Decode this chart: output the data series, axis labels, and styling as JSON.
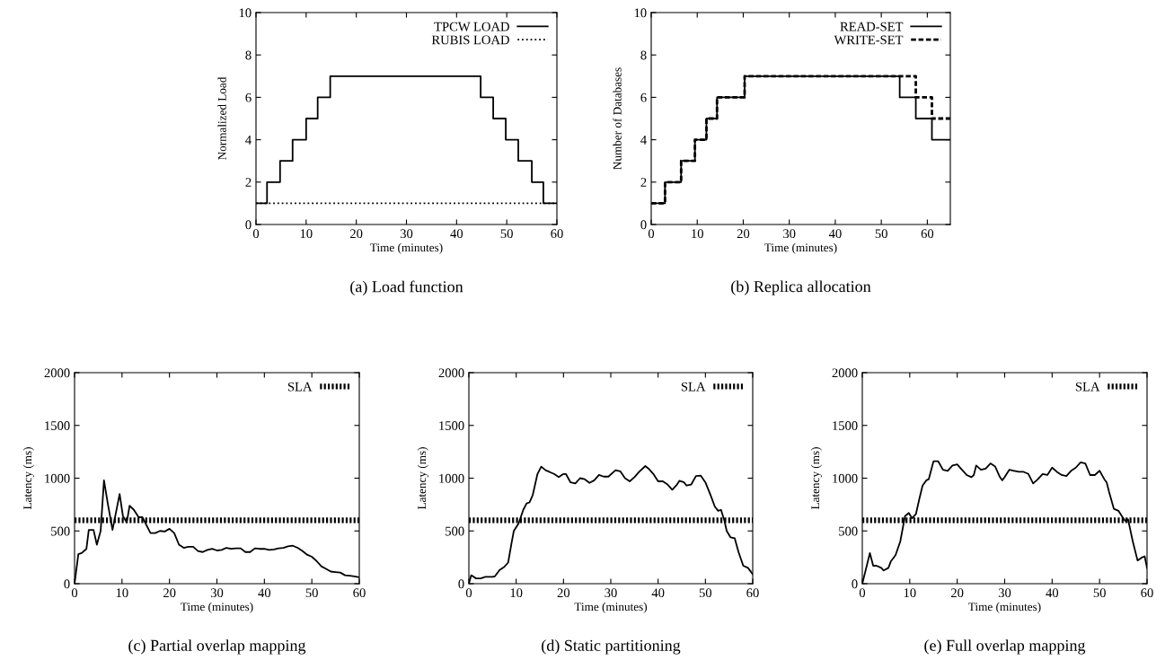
{
  "chart_data": [
    {
      "type": "step",
      "title": "(a) Load function",
      "xlabel": "Time (minutes)",
      "ylabel": "Normalized Load",
      "xlim": [
        0,
        60
      ],
      "xticks": [
        0,
        10,
        20,
        30,
        40,
        50,
        60
      ],
      "ylim": [
        0,
        10
      ],
      "yticks": [
        0,
        2,
        4,
        6,
        8,
        10
      ],
      "legend": "top right",
      "grid": false,
      "series": [
        {
          "name": "TPCW LOAD",
          "color": "#000000",
          "line_style": "solid",
          "x": [
            0,
            2.2,
            4.8,
            7.3,
            10,
            12.3,
            14.8,
            44.8,
            47.3,
            49.8,
            52.3,
            55,
            57.3,
            60
          ],
          "values": [
            1,
            2,
            3,
            4,
            5,
            6,
            7,
            6,
            5,
            4,
            3,
            2,
            1,
            1
          ]
        },
        {
          "name": "RUBIS LOAD",
          "color": "#000000",
          "line_style": "dotted",
          "x": [
            0,
            60
          ],
          "values": [
            1,
            1
          ]
        }
      ]
    },
    {
      "type": "step",
      "title": "(b) Replica allocation",
      "xlabel": "Time (minutes)",
      "ylabel": "Number of Databases",
      "xlim": [
        0,
        65
      ],
      "xticks": [
        0,
        10,
        20,
        30,
        40,
        50,
        60
      ],
      "ylim": [
        0,
        10
      ],
      "yticks": [
        0,
        2,
        4,
        6,
        8,
        10
      ],
      "legend": "top right",
      "grid": false,
      "series": [
        {
          "name": "READ-SET",
          "color": "#000000",
          "line_style": "solid",
          "x": [
            0,
            3,
            6.5,
            9.5,
            12,
            14.3,
            20.3,
            54,
            57.5,
            61,
            65
          ],
          "values": [
            1,
            2,
            3,
            4,
            5,
            6,
            7,
            6,
            5,
            4,
            4
          ]
        },
        {
          "name": "WRITE-SET",
          "color": "#000000",
          "line_style": "dashed",
          "x": [
            0,
            3,
            6.5,
            9.5,
            12,
            14.3,
            20.3,
            57.5,
            61,
            65
          ],
          "values": [
            1,
            2,
            3,
            4,
            5,
            6,
            7,
            6,
            5,
            5
          ]
        }
      ]
    },
    {
      "type": "line",
      "title": "(c) Partial overlap mapping",
      "xlabel": "Time (minutes)",
      "ylabel": "Latency (ms)",
      "xlim": [
        0,
        60
      ],
      "xticks": [
        0,
        10,
        20,
        30,
        40,
        50,
        60
      ],
      "ylim": [
        0,
        2000
      ],
      "yticks": [
        0,
        500,
        1000,
        1500,
        2000
      ],
      "legend": "top right",
      "grid": false,
      "series": [
        {
          "color": "#000000",
          "line_style": "solid",
          "x": [
            0,
            0.8,
            1.5,
            2.5,
            3,
            4,
            4.7,
            5.5,
            6.2,
            7,
            8,
            9.5,
            10.2,
            11,
            11.6,
            12.5,
            13.5,
            14.3,
            16,
            17,
            18,
            19,
            20,
            21,
            22,
            23,
            24,
            25,
            26,
            27,
            28,
            29,
            30,
            31,
            32,
            33,
            34,
            35,
            36,
            37,
            38,
            39,
            40,
            41,
            42,
            43,
            44,
            45,
            46,
            47,
            48,
            49,
            50,
            51,
            52,
            53,
            54,
            55,
            56,
            57,
            58,
            59,
            60
          ],
          "values": [
            0,
            280,
            290,
            330,
            510,
            510,
            370,
            500,
            980,
            760,
            510,
            850,
            640,
            580,
            740,
            700,
            630,
            630,
            480,
            480,
            500,
            495,
            520,
            480,
            370,
            340,
            350,
            350,
            310,
            300,
            320,
            330,
            315,
            320,
            340,
            330,
            335,
            335,
            300,
            300,
            335,
            330,
            330,
            320,
            325,
            335,
            340,
            355,
            360,
            340,
            310,
            275,
            255,
            215,
            165,
            140,
            115,
            110,
            105,
            80,
            75,
            70,
            60
          ]
        },
        {
          "name": "SLA",
          "color": "#000000",
          "line_style": "dotted",
          "x": [
            0,
            60
          ],
          "values": [
            600,
            600
          ]
        }
      ]
    },
    {
      "type": "line",
      "title": "(d) Static partitioning",
      "xlabel": "Time (minutes)",
      "ylabel": "Latency (ms)",
      "xlim": [
        0,
        60
      ],
      "xticks": [
        0,
        10,
        20,
        30,
        40,
        50,
        60
      ],
      "ylim": [
        0,
        2000
      ],
      "yticks": [
        0,
        500,
        1000,
        1500,
        2000
      ],
      "legend": "top right",
      "grid": false,
      "series": [
        {
          "color": "#000000",
          "line_style": "solid",
          "x": [
            0,
            0.5,
            1.5,
            2.5,
            3.5,
            5,
            5.5,
            6.5,
            7.5,
            8.3,
            9,
            9.5,
            10.5,
            11.5,
            12.2,
            12.8,
            13.5,
            14.5,
            15.3,
            16.2,
            17,
            18,
            19,
            20,
            20.5,
            21.5,
            22.5,
            23.5,
            24.5,
            25.5,
            26.5,
            27.5,
            28.5,
            29.5,
            31,
            32,
            33,
            34,
            35,
            36,
            37.3,
            38,
            39,
            40,
            41,
            42,
            43,
            44,
            44.5,
            45.5,
            46,
            47,
            48,
            49,
            50,
            51,
            52,
            52.7,
            53.3,
            54,
            54.5,
            55.3,
            56.2,
            57,
            58,
            59,
            59.5,
            60
          ],
          "values": [
            0,
            80,
            50,
            50,
            65,
            65,
            70,
            130,
            160,
            200,
            380,
            500,
            570,
            700,
            760,
            770,
            840,
            1040,
            1110,
            1075,
            1060,
            1040,
            1010,
            1040,
            1040,
            960,
            950,
            1000,
            990,
            955,
            980,
            1030,
            1015,
            1015,
            1075,
            1065,
            1000,
            970,
            1010,
            1060,
            1115,
            1090,
            1040,
            970,
            970,
            940,
            890,
            940,
            975,
            960,
            930,
            940,
            1020,
            1025,
            960,
            850,
            730,
            690,
            700,
            600,
            500,
            440,
            430,
            300,
            170,
            150,
            120,
            90
          ]
        },
        {
          "name": "SLA",
          "color": "#000000",
          "line_style": "dotted",
          "x": [
            0,
            60
          ],
          "values": [
            600,
            600
          ]
        }
      ]
    },
    {
      "type": "line",
      "title": "(e) Full overlap mapping",
      "xlabel": "Time (minutes)",
      "ylabel": "Latency (ms)",
      "xlim": [
        0,
        60
      ],
      "xticks": [
        0,
        10,
        20,
        30,
        40,
        50,
        60
      ],
      "ylim": [
        0,
        2000
      ],
      "yticks": [
        0,
        500,
        1000,
        1500,
        2000
      ],
      "legend": "top right",
      "grid": false,
      "series": [
        {
          "color": "#000000",
          "line_style": "solid",
          "x": [
            0,
            1.6,
            2.3,
            3,
            4,
            4.5,
            5.5,
            6,
            7,
            8,
            9,
            9.8,
            10.5,
            11.3,
            12,
            12.7,
            13.5,
            14,
            15,
            16,
            17,
            18,
            19,
            20,
            21,
            22,
            23,
            23.5,
            24,
            25,
            26,
            27,
            28,
            29,
            29.5,
            30,
            31,
            32,
            33,
            34,
            35,
            36,
            37,
            38,
            39,
            40,
            41,
            42,
            43,
            44,
            45,
            46,
            47,
            48,
            49,
            50,
            51,
            51.5,
            52,
            53,
            54,
            55,
            55.5,
            56,
            57,
            58,
            59,
            59.5,
            60
          ],
          "values": [
            0,
            290,
            170,
            170,
            150,
            125,
            150,
            210,
            270,
            400,
            640,
            670,
            620,
            660,
            800,
            930,
            980,
            990,
            1160,
            1160,
            1080,
            1070,
            1120,
            1130,
            1080,
            1030,
            1010,
            1030,
            1120,
            1080,
            1090,
            1140,
            1110,
            1010,
            980,
            1010,
            1080,
            1070,
            1060,
            1060,
            1040,
            950,
            990,
            1040,
            1030,
            1100,
            1060,
            1030,
            1020,
            1070,
            1100,
            1150,
            1140,
            1030,
            1030,
            1070,
            990,
            960,
            870,
            710,
            690,
            620,
            590,
            610,
            400,
            220,
            250,
            260,
            150
          ]
        },
        {
          "name": "SLA",
          "color": "#000000",
          "line_style": "dotted",
          "x": [
            0,
            60
          ],
          "values": [
            600,
            600
          ]
        }
      ]
    }
  ]
}
